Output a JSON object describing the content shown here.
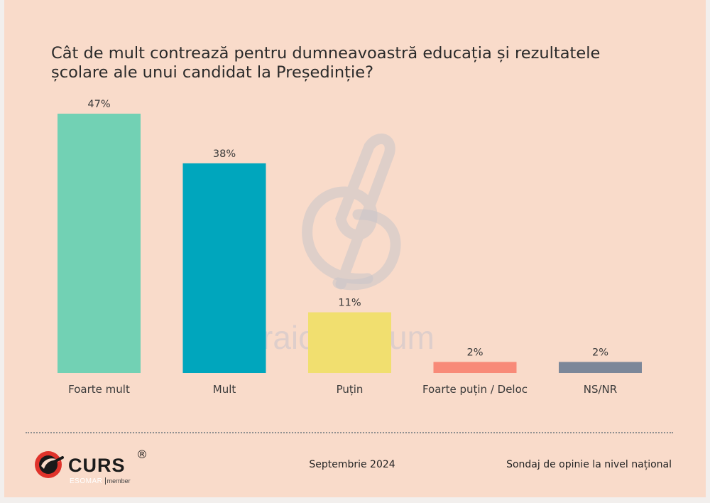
{
  "title": "Cât de mult contrează pentru dumneavoastră educația și rezultatele școlare ale unui candidat la Președinție?",
  "chart_data": {
    "type": "bar",
    "title": "Cât de mult contrează pentru dumneavoastră educația și rezultatele școlare ale unui candidat la Președinție?",
    "categories": [
      "Foarte mult",
      "Mult",
      "Puțin",
      "Foarte puțin / Deloc",
      "NS/NR"
    ],
    "values": [
      47,
      38,
      11,
      2,
      2
    ],
    "value_labels": [
      "47%",
      "38%",
      "11%",
      "2%",
      "2%"
    ],
    "colors": [
      "#72d1b4",
      "#00a6bd",
      "#f1df6f",
      "#f88a78",
      "#7c8799"
    ],
    "unit": "%",
    "ylim": [
      0,
      47
    ],
    "grid": false,
    "legend": "none"
  },
  "footer": {
    "date": "Septembrie 2024",
    "survey": "Sondaj de opinie la nivel național"
  },
  "logo": {
    "brand": "CURS",
    "registered": "®",
    "esomar": "ESOMAR",
    "member": "member"
  },
  "watermark": {
    "text": "craiovaforum",
    "icon": "cf-logo-icon"
  }
}
